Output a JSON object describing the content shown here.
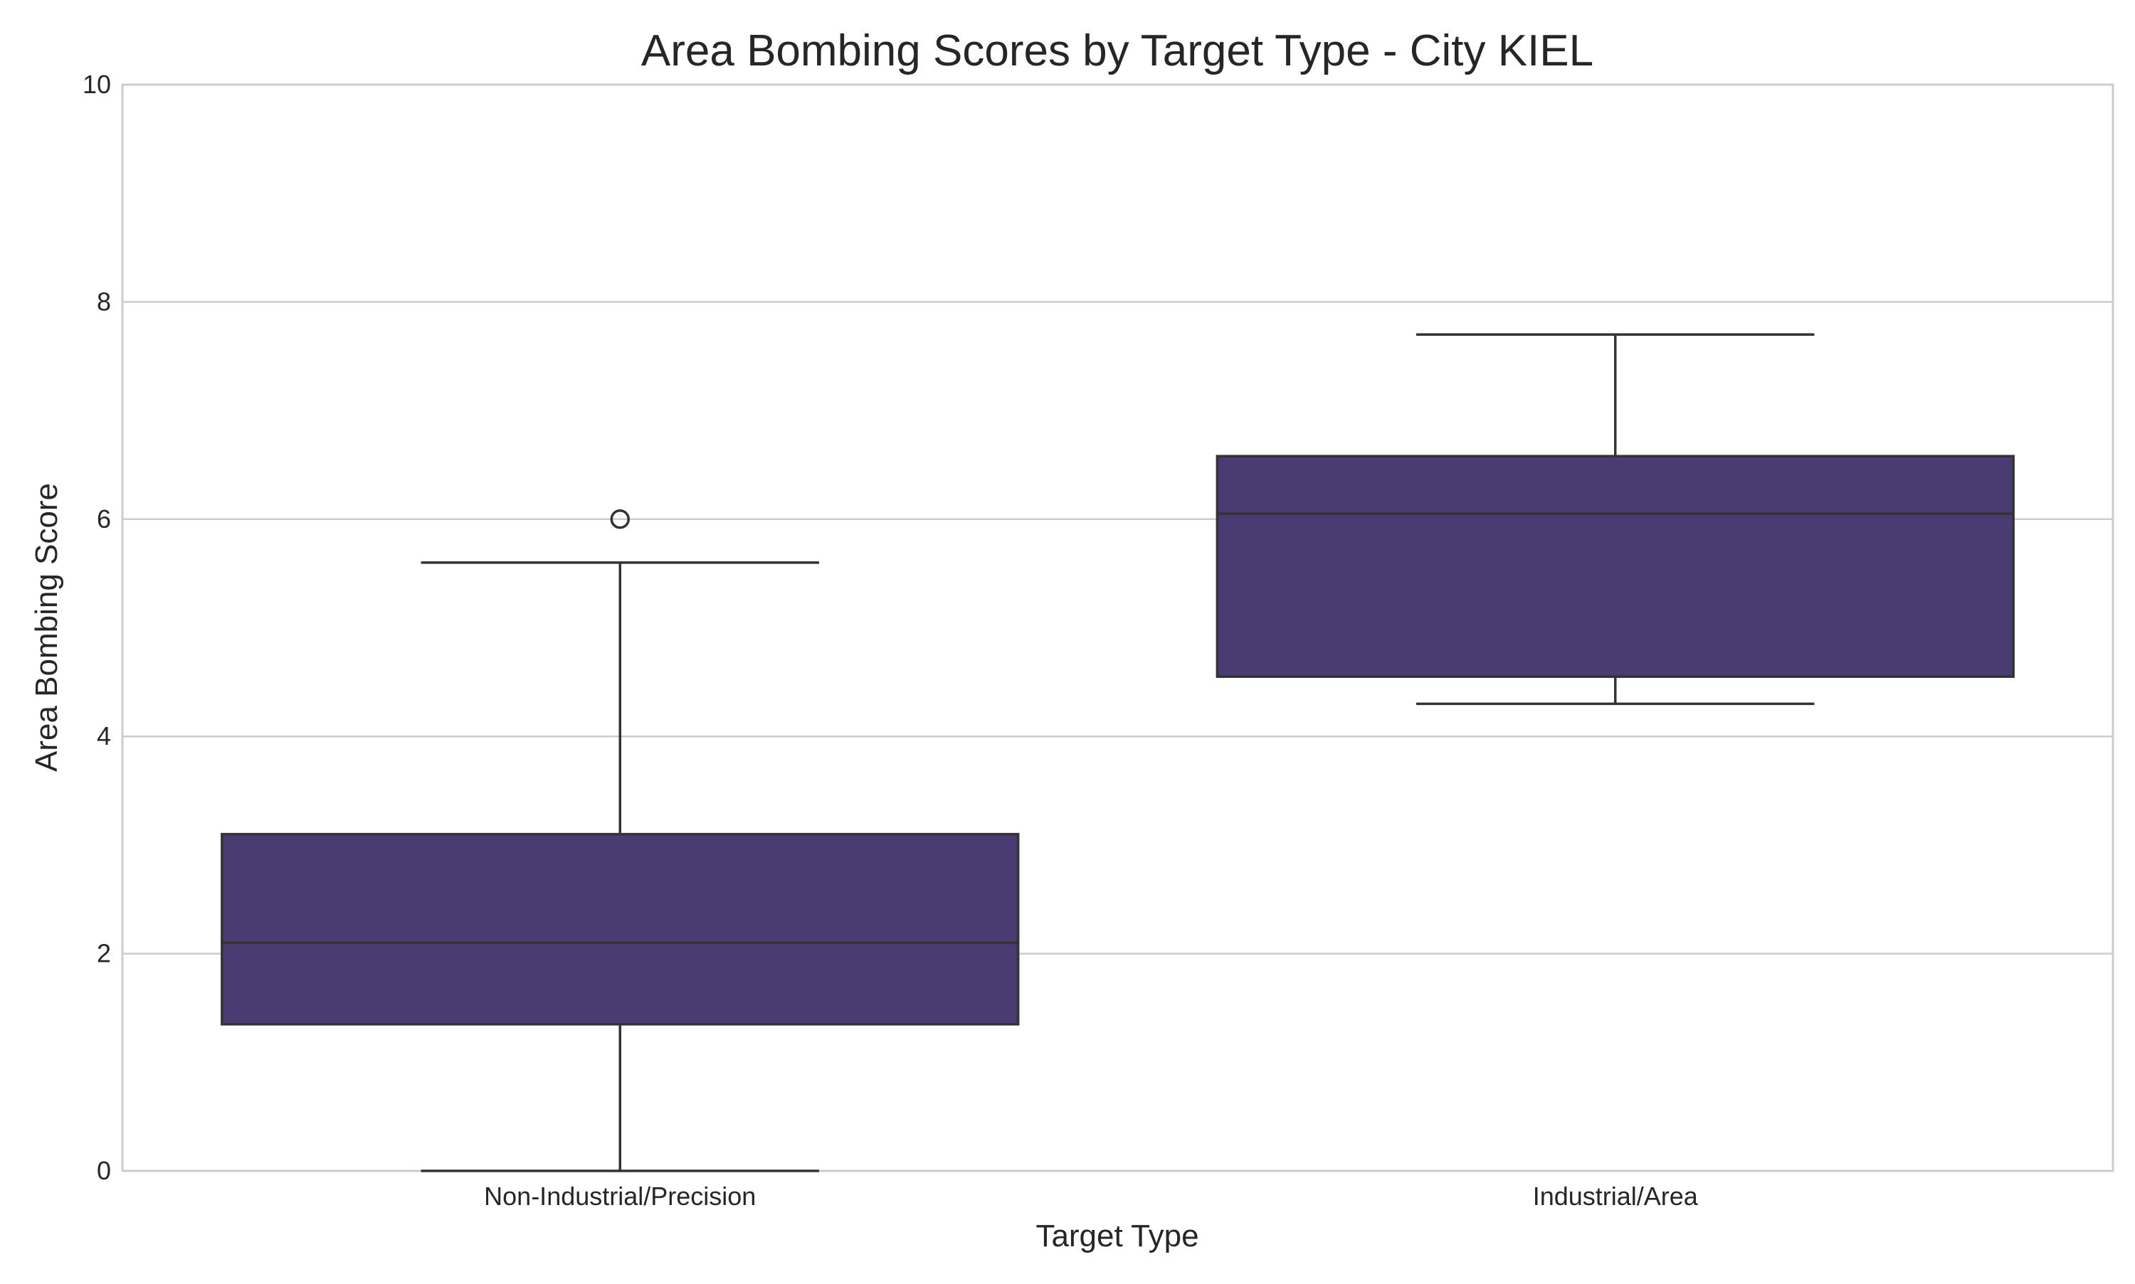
{
  "chart_data": {
    "type": "box",
    "title": "Area Bombing Scores by Target Type - City KIEL",
    "xlabel": "Target Type",
    "ylabel": "Area Bombing Score",
    "ylim": [
      0,
      10
    ],
    "yticks": [
      "0",
      "2",
      "4",
      "6",
      "8",
      "10"
    ],
    "grid": true,
    "box_color": "#4a3b72",
    "categories": [
      "Non-Industrial/Precision",
      "Industrial/Area"
    ],
    "boxes": [
      {
        "category": "Non-Industrial/Precision",
        "whisker_low": 0.0,
        "q1": 1.35,
        "median": 2.1,
        "q3": 3.1,
        "whisker_high": 5.6,
        "outliers": [
          6.0
        ]
      },
      {
        "category": "Industrial/Area",
        "whisker_low": 4.3,
        "q1": 4.55,
        "median": 6.05,
        "q3": 6.58,
        "whisker_high": 7.7,
        "outliers": []
      }
    ]
  }
}
